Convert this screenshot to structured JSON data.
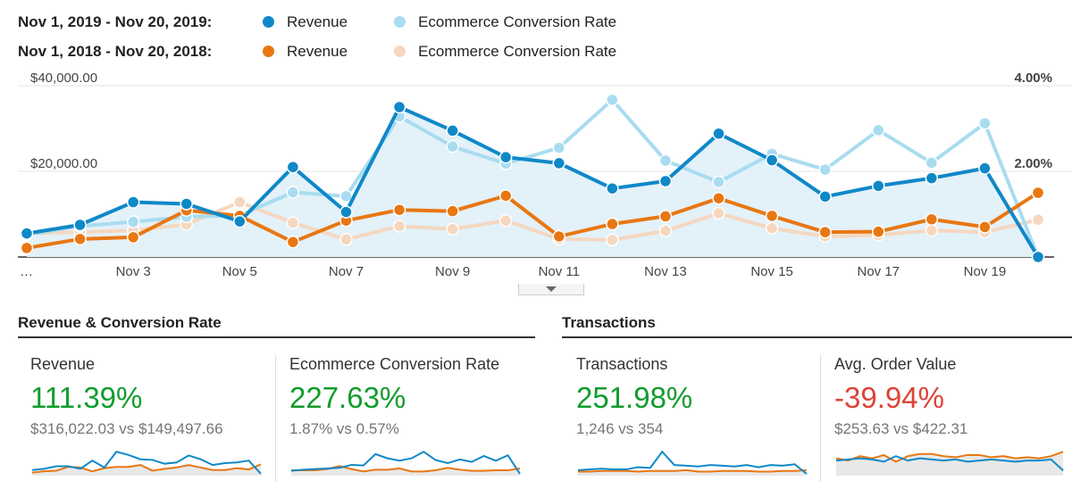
{
  "legend": {
    "rows": [
      {
        "period": "Nov 1, 2019 - Nov 20, 2019:",
        "items": [
          {
            "label": "Revenue",
            "color": "#0f88c8"
          },
          {
            "label": "Ecommerce Conversion Rate",
            "color": "#a9dcf0"
          }
        ]
      },
      {
        "period": "Nov 1, 2018 - Nov 20, 2018:",
        "items": [
          {
            "label": "Revenue",
            "color": "#e87712"
          },
          {
            "label": "Ecommerce Conversion Rate",
            "color": "#f5d7c0"
          }
        ]
      }
    ]
  },
  "chart_data": {
    "type": "line",
    "x": [
      "Nov 1",
      "Nov 2",
      "Nov 3",
      "Nov 4",
      "Nov 5",
      "Nov 6",
      "Nov 7",
      "Nov 8",
      "Nov 9",
      "Nov 10",
      "Nov 11",
      "Nov 12",
      "Nov 13",
      "Nov 14",
      "Nov 15",
      "Nov 16",
      "Nov 17",
      "Nov 18",
      "Nov 19",
      "Nov 20"
    ],
    "x_tick_labels": [
      "Nov 3",
      "Nov 5",
      "Nov 7",
      "Nov 9",
      "Nov 11",
      "Nov 13",
      "Nov 15",
      "Nov 17",
      "Nov 19"
    ],
    "x_tick_indices": [
      2,
      4,
      6,
      8,
      10,
      12,
      14,
      16,
      18
    ],
    "x_ellipsis": "…",
    "y_left": {
      "ylim": [
        0,
        40000
      ],
      "tick_labels": [
        "$40,000.00",
        "$20,000.00"
      ],
      "ticks": [
        40000,
        20000
      ]
    },
    "y_right": {
      "ylim": [
        0,
        4
      ],
      "tick_labels": [
        "4.00%",
        "2.00%"
      ],
      "ticks": [
        4,
        2
      ]
    },
    "grid": true,
    "series": [
      {
        "name": "Revenue",
        "period": "Nov 1, 2019 - Nov 20, 2019",
        "axis": "left",
        "color": "#0f88c8",
        "area": true,
        "values": [
          5500,
          7500,
          12800,
          12400,
          8300,
          21000,
          10500,
          35000,
          29500,
          23300,
          21900,
          16000,
          17700,
          28800,
          22600,
          14100,
          16600,
          18400,
          20700,
          0
        ]
      },
      {
        "name": "Ecommerce Conversion Rate",
        "period": "Nov 1, 2019 - Nov 20, 2019",
        "axis": "right",
        "color": "#a9dcf0",
        "values": [
          0.52,
          0.72,
          0.82,
          0.94,
          0.97,
          1.51,
          1.42,
          3.28,
          2.58,
          2.18,
          2.55,
          3.67,
          2.25,
          1.75,
          2.41,
          2.04,
          2.96,
          2.2,
          3.12,
          0.0
        ]
      },
      {
        "name": "Revenue",
        "period": "Nov 1, 2018 - Nov 20, 2018",
        "axis": "left",
        "color": "#e87712",
        "values": [
          2100,
          4200,
          4600,
          10900,
          9600,
          3500,
          8500,
          11000,
          10700,
          14300,
          4800,
          7700,
          9500,
          13700,
          9600,
          5800,
          5900,
          8800,
          7000,
          15000
        ]
      },
      {
        "name": "Ecommerce Conversion Rate",
        "period": "Nov 1, 2018 - Nov 20, 2018",
        "axis": "right",
        "color": "#f5d7c0",
        "values": [
          0.55,
          0.58,
          0.62,
          0.76,
          1.28,
          0.8,
          0.41,
          0.72,
          0.65,
          0.85,
          0.42,
          0.4,
          0.61,
          1.02,
          0.67,
          0.48,
          0.51,
          0.62,
          0.58,
          0.87
        ]
      }
    ]
  },
  "sections": {
    "left_title": "Revenue & Conversion Rate",
    "right_title": "Transactions"
  },
  "metrics": [
    {
      "name": "Revenue",
      "change": "111.39%",
      "sign": "pos",
      "compare": "$316,022.03 vs $149,497.66",
      "spark_current": [
        6,
        8,
        12,
        12,
        8,
        21,
        10,
        35,
        30,
        23,
        22,
        16,
        18,
        29,
        23,
        14,
        17,
        18,
        21,
        0
      ],
      "spark_previous": [
        2,
        4,
        5,
        11,
        10,
        4,
        9,
        11,
        11,
        14,
        5,
        8,
        10,
        14,
        10,
        6,
        6,
        9,
        7,
        15
      ]
    },
    {
      "name": "Ecommerce Conversion Rate",
      "change": "227.63%",
      "sign": "pos",
      "compare": "1.87% vs 0.57%",
      "spark_current": [
        5,
        7,
        8,
        9,
        10,
        15,
        14,
        33,
        26,
        22,
        26,
        37,
        23,
        18,
        24,
        20,
        30,
        22,
        31,
        0
      ],
      "spark_previous": [
        6,
        6,
        6,
        8,
        13,
        8,
        4,
        7,
        7,
        9,
        4,
        4,
        6,
        10,
        7,
        5,
        5,
        6,
        6,
        9
      ]
    },
    {
      "name": "Transactions",
      "change": "251.98%",
      "sign": "pos",
      "compare": "1,246 vs 354",
      "spark_current": [
        5,
        6,
        7,
        6,
        6,
        9,
        8,
        30,
        12,
        11,
        10,
        12,
        11,
        10,
        12,
        9,
        12,
        11,
        13,
        0
      ],
      "spark_previous": [
        3,
        3,
        4,
        4,
        4,
        3,
        4,
        4,
        4,
        5,
        3,
        3,
        4,
        4,
        4,
        3,
        3,
        4,
        4,
        5
      ]
    },
    {
      "name": "Avg. Order Value",
      "change": "-39.94%",
      "sign": "neg",
      "compare": "$253.63 vs $422.31",
      "spark_current": [
        12,
        13,
        14,
        13,
        11,
        16,
        12,
        14,
        13,
        12,
        13,
        11,
        12,
        13,
        12,
        11,
        12,
        12,
        13,
        3
      ],
      "spark_previous": [
        14,
        12,
        16,
        14,
        17,
        11,
        16,
        18,
        18,
        16,
        15,
        17,
        17,
        15,
        16,
        14,
        15,
        14,
        16,
        20
      ]
    }
  ]
}
